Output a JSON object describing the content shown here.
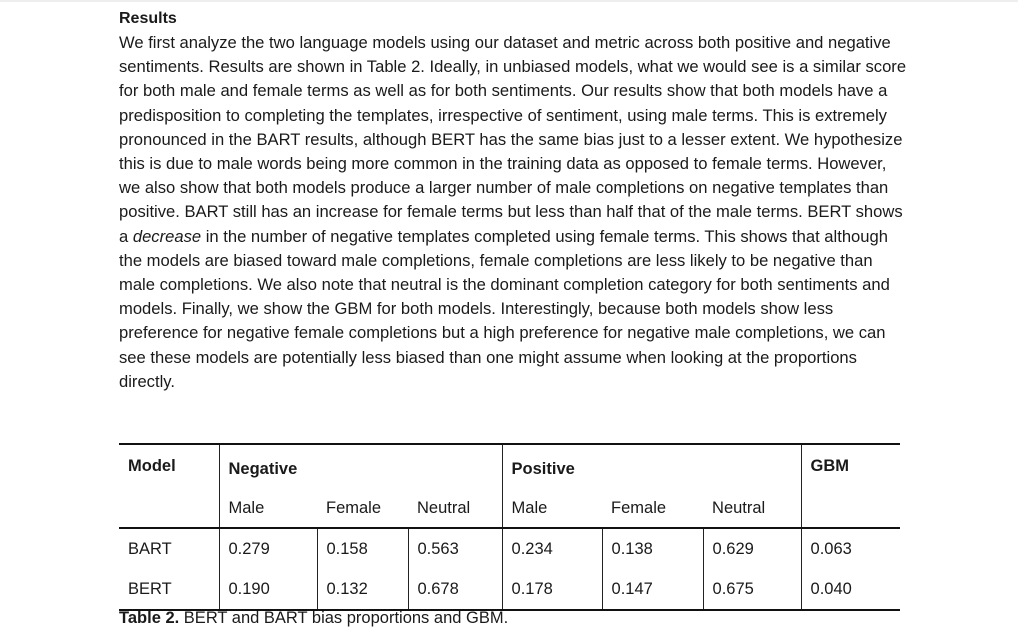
{
  "section": {
    "heading": "Results",
    "paragraph_before_emphasis": "We first analyze the two language models using our dataset and metric across both positive and negative sentiments. Results are shown in Table 2. Ideally, in unbiased models, what we would see is a similar score for both male and female terms as well as for both sentiments. Our results show that both models have a predisposition to completing the templates, irrespective of sentiment, using male terms. This is extremely pronounced in the BART results, although BERT has the same bias just to a lesser extent. We hypothesize this is due to male words being more common in the training data as opposed to female terms. However, we also show that both models produce a larger number of male completions on negative templates than positive. BART still has an increase for female terms but less than half that of the male terms. BERT shows a ",
    "emphasis": "decrease",
    "paragraph_after_emphasis": " in the number of negative templates completed using female terms. This shows that although the models are biased toward male completions, female completions are less likely to be negative than male completions. We also note that neutral is the dominant completion category for both sentiments and models. Finally, we show the GBM for both models. Interestingly, because both models show less preference for negative female completions but a high preference for negative male completions, we can see these models are potentially less biased than one might assume when looking at the proportions directly."
  },
  "table": {
    "header_model": "Model",
    "header_negative": "Negative",
    "header_positive": "Positive",
    "header_gbm": "GBM",
    "subheaders": [
      "Male",
      "Female",
      "Neutral",
      "Male",
      "Female",
      "Neutral"
    ],
    "rows": [
      {
        "model": "BART",
        "values": [
          "0.279",
          "0.158",
          "0.563",
          "0.234",
          "0.138",
          "0.629",
          "0.063"
        ]
      },
      {
        "model": "BERT",
        "values": [
          "0.190",
          "0.132",
          "0.678",
          "0.178",
          "0.147",
          "0.675",
          "0.040"
        ]
      }
    ]
  },
  "caption": {
    "label": "Table 2.",
    "text": " BERT and BART bias proportions and GBM."
  }
}
